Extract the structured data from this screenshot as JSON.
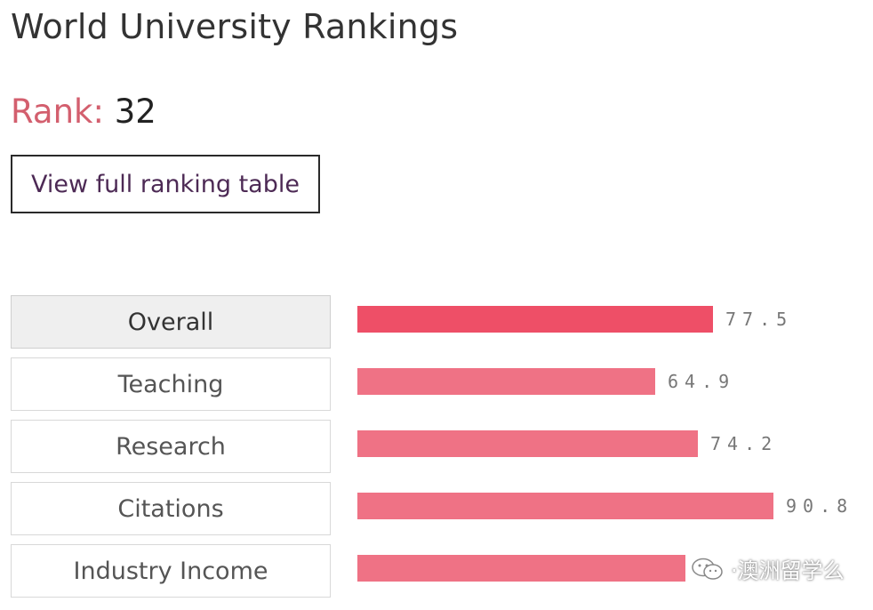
{
  "page": {
    "title": "World University Rankings",
    "rank_label": "Rank:",
    "rank_value": "32",
    "view_button_label": "View full ranking table"
  },
  "scale_max": 100,
  "metrics": [
    {
      "label": "Overall",
      "score": 77.5,
      "score_text": "77.5",
      "active": true
    },
    {
      "label": "Teaching",
      "score": 64.9,
      "score_text": "64.9",
      "active": false
    },
    {
      "label": "Research",
      "score": 74.2,
      "score_text": "74.2",
      "active": false
    },
    {
      "label": "Citations",
      "score": 90.8,
      "score_text": "90.8",
      "active": false
    },
    {
      "label": "Industry Income",
      "score": 71.5,
      "score_text": "",
      "active": false
    }
  ],
  "colors": {
    "bar": "#ef7285",
    "bar_active": "#ee4f67",
    "rank_label": "#d35f6e"
  },
  "watermark": {
    "icon": "wechat-icon",
    "text": "·澳洲留学么"
  }
}
